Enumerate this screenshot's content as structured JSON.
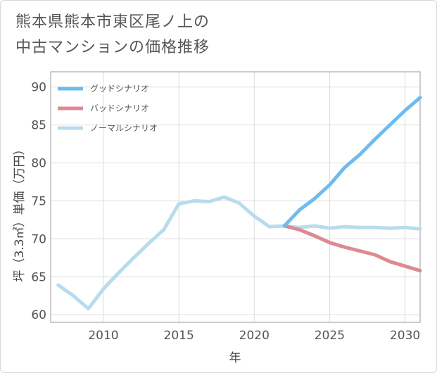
{
  "title_lines": [
    "熊本県熊本市東区尾ノ上の",
    "中古マンションの価格推移"
  ],
  "chart_data": {
    "type": "line",
    "title": "熊本県熊本市東区尾ノ上の中古マンションの価格推移",
    "xlabel": "年",
    "ylabel": "坪（3.3㎡）単価（万円）",
    "xlim": [
      2006.5,
      2031
    ],
    "ylim": [
      59,
      92
    ],
    "x_ticks": [
      2010,
      2015,
      2020,
      2025,
      2030
    ],
    "y_ticks": [
      60,
      65,
      70,
      75,
      80,
      85,
      90
    ],
    "grid": true,
    "legend_position": "top-left",
    "series": [
      {
        "name": "グッドシナリオ",
        "color": "#6cbcf0",
        "x": [
          2022,
          2023,
          2024,
          2025,
          2026,
          2027,
          2028,
          2029,
          2030,
          2031
        ],
        "y": [
          71.7,
          73.8,
          75.3,
          77.1,
          79.4,
          81.1,
          83.1,
          85.0,
          86.9,
          88.6
        ]
      },
      {
        "name": "バッドシナリオ",
        "color": "#dd8a92",
        "x": [
          2022,
          2023,
          2024,
          2025,
          2026,
          2027,
          2028,
          2029,
          2030,
          2031
        ],
        "y": [
          71.7,
          71.2,
          70.4,
          69.5,
          68.9,
          68.4,
          67.9,
          67.0,
          66.4,
          65.8
        ]
      },
      {
        "name": "ノーマルシナリオ",
        "color": "#b8dcee",
        "x": [
          2007,
          2008,
          2009,
          2010,
          2011,
          2012,
          2013,
          2014,
          2015,
          2016,
          2017,
          2018,
          2019,
          2020,
          2021,
          2022,
          2023,
          2024,
          2025,
          2026,
          2027,
          2028,
          2029,
          2030,
          2031
        ],
        "y": [
          63.9,
          62.5,
          60.8,
          63.4,
          65.5,
          67.5,
          69.4,
          71.2,
          74.6,
          75.0,
          74.9,
          75.5,
          74.7,
          73.0,
          71.6,
          71.7,
          71.5,
          71.7,
          71.4,
          71.6,
          71.5,
          71.5,
          71.4,
          71.5,
          71.3
        ]
      }
    ]
  }
}
